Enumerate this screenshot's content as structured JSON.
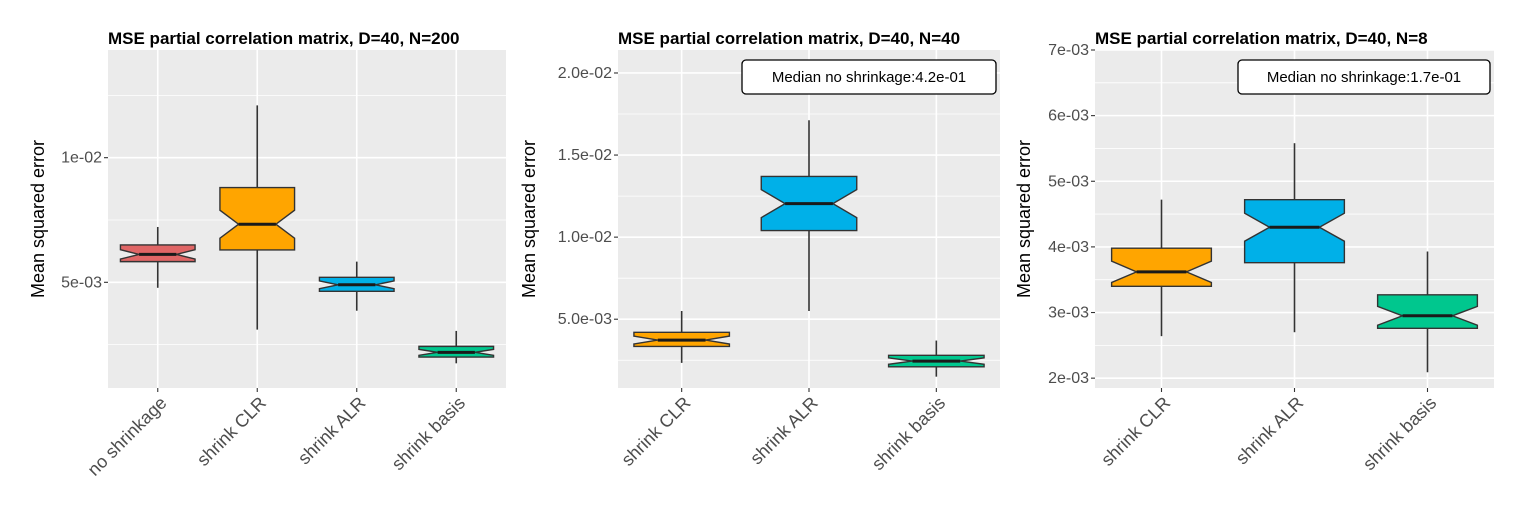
{
  "chart_data": [
    {
      "type": "boxplot",
      "title": "MSE partial correlation matrix, D=40, N=200",
      "xlabel": "",
      "ylabel": "Mean squared error",
      "ylim": [
        0.00076,
        0.01432
      ],
      "yticks": [
        0.005,
        0.01
      ],
      "ytick_labels": [
        "5e-03",
        "1e-02"
      ],
      "grid": true,
      "categories": [
        "no shrinkage",
        "shrink CLR",
        "shrink ALR",
        "shrink basis"
      ],
      "colors": [
        "#e06666",
        "#ffa500",
        "#00b0e8",
        "#00c78e"
      ],
      "boxes": [
        {
          "whisker_low": 0.00478,
          "q1": 0.00583,
          "median": 0.00612,
          "q3": 0.0065,
          "whisker_high": 0.00722
        },
        {
          "whisker_low": 0.0031,
          "q1": 0.0063,
          "median": 0.00733,
          "q3": 0.0088,
          "whisker_high": 0.0121
        },
        {
          "whisker_low": 0.00386,
          "q1": 0.00464,
          "median": 0.0049,
          "q3": 0.0052,
          "whisker_high": 0.00583
        },
        {
          "whisker_low": 0.00175,
          "q1": 0.002,
          "median": 0.00219,
          "q3": 0.00243,
          "whisker_high": 0.00305
        }
      ],
      "annotation": ""
    },
    {
      "type": "boxplot",
      "title": "MSE partial correlation matrix, D=40, N=40",
      "xlabel": "",
      "ylabel": "Mean squared error",
      "ylim": [
        0.00081,
        0.0214
      ],
      "yticks": [
        0.005,
        0.01,
        0.015,
        0.02
      ],
      "ytick_labels": [
        "5.0e-03",
        "1.0e-02",
        "1.5e-02",
        "2.0e-02"
      ],
      "grid": true,
      "categories": [
        "shrink CLR",
        "shrink ALR",
        "shrink basis"
      ],
      "colors": [
        "#ffa500",
        "#00b0e8",
        "#00c78e"
      ],
      "boxes": [
        {
          "whisker_low": 0.00234,
          "q1": 0.00334,
          "median": 0.00373,
          "q3": 0.0042,
          "whisker_high": 0.0055
        },
        {
          "whisker_low": 0.0055,
          "q1": 0.0104,
          "median": 0.01204,
          "q3": 0.0137,
          "whisker_high": 0.01712
        },
        {
          "whisker_low": 0.0015,
          "q1": 0.0021,
          "median": 0.00245,
          "q3": 0.0028,
          "whisker_high": 0.0037
        }
      ],
      "annotation": "Median no shrinkage:4.2e-01"
    },
    {
      "type": "boxplot",
      "title": "MSE partial correlation matrix, D=40, N=8",
      "xlabel": "",
      "ylabel": "Mean squared error",
      "ylim": [
        0.00185,
        0.007
      ],
      "yticks": [
        0.002,
        0.003,
        0.004,
        0.005,
        0.006,
        0.007
      ],
      "ytick_labels": [
        "2e-03",
        "3e-03",
        "4e-03",
        "5e-03",
        "6e-03",
        "7e-03"
      ],
      "grid": true,
      "categories": [
        "shrink CLR",
        "shrink ALR",
        "shrink basis"
      ],
      "colors": [
        "#ffa500",
        "#00b0e8",
        "#00c78e"
      ],
      "boxes": [
        {
          "whisker_low": 0.00264,
          "q1": 0.0034,
          "median": 0.00362,
          "q3": 0.00398,
          "whisker_high": 0.00472
        },
        {
          "whisker_low": 0.0027,
          "q1": 0.00376,
          "median": 0.0043,
          "q3": 0.00472,
          "whisker_high": 0.00558
        },
        {
          "whisker_low": 0.00209,
          "q1": 0.00276,
          "median": 0.00295,
          "q3": 0.00327,
          "whisker_high": 0.00393
        }
      ],
      "annotation": "Median no shrinkage:1.7e-01"
    }
  ]
}
